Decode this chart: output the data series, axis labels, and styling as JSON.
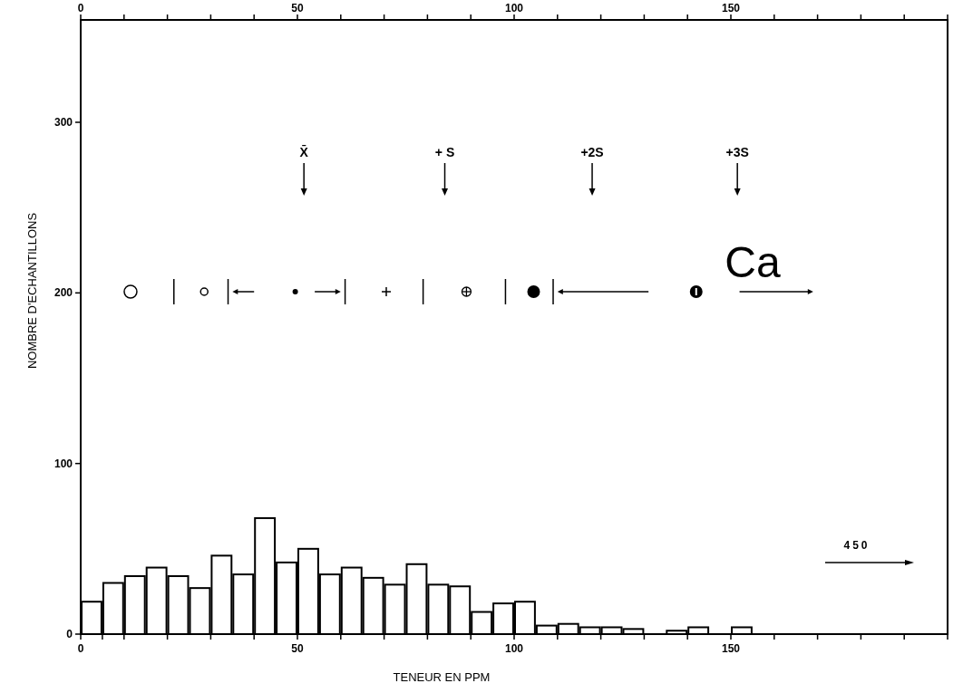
{
  "chart_data": {
    "type": "histogram",
    "xlabel": "TENEUR EN PPM",
    "ylabel": "NOMBRE D'ECHANTILLONS",
    "bins": [
      0,
      5,
      10,
      15,
      20,
      25,
      30,
      35,
      40,
      45,
      50,
      55,
      60,
      65,
      70,
      75,
      80,
      85,
      90,
      95,
      100,
      105,
      110,
      115,
      120,
      125,
      130,
      135,
      140,
      145,
      150,
      155
    ],
    "values": [
      19,
      30,
      34,
      39,
      34,
      27,
      46,
      35,
      68,
      42,
      50,
      35,
      39,
      33,
      29,
      41,
      29,
      28,
      13,
      18,
      19,
      5,
      6,
      4,
      4,
      3,
      0,
      2,
      4,
      0,
      4
    ],
    "color": "#ffffff",
    "xlim": [
      0,
      200
    ],
    "xticks": [
      0,
      {
        "value": 5,
        "label": null
      },
      {
        "value": 10,
        "label": null
      },
      {
        "value": 20,
        "label": null
      },
      {
        "value": 30,
        "label": null
      },
      {
        "value": 40,
        "label": null
      },
      50,
      {
        "value": 60,
        "label": null
      },
      {
        "value": 70,
        "label": null
      },
      {
        "value": 80,
        "label": null
      },
      {
        "value": 90,
        "label": null
      },
      100,
      {
        "value": 110,
        "label": null
      },
      {
        "value": 120,
        "label": null
      },
      {
        "value": 130,
        "label": null
      },
      {
        "value": 140,
        "label": null
      },
      150,
      {
        "value": 160,
        "label": null
      },
      {
        "value": 170,
        "label": null
      },
      {
        "value": 180,
        "label": null
      },
      {
        "value": 190,
        "label": null
      },
      {
        "value": 200,
        "label": null
      }
    ],
    "x2lim": [
      0,
      200
    ],
    "x2ticks": [
      0,
      {
        "value": 10,
        "label": null
      },
      {
        "value": 20,
        "label": null
      },
      {
        "value": 30,
        "label": null
      },
      {
        "value": 40,
        "label": null
      },
      50,
      {
        "value": 60,
        "label": null
      },
      {
        "value": 70,
        "label": null
      },
      {
        "value": 80,
        "label": null
      },
      {
        "value": 90,
        "label": null
      },
      100,
      {
        "value": 110,
        "label": null
      },
      {
        "value": 120,
        "label": null
      },
      {
        "value": 130,
        "label": null
      },
      {
        "value": 140,
        "label": null
      },
      150,
      {
        "value": 160,
        "label": null
      },
      {
        "value": 170,
        "label": null
      },
      {
        "value": 180,
        "label": null
      },
      {
        "value": 190,
        "label": null
      },
      {
        "value": 200,
        "label": null
      }
    ],
    "ylim": [
      0,
      360
    ],
    "yticks": [
      0,
      100,
      200,
      300
    ],
    "grid": false,
    "annotations": [
      "X̄",
      "+ S",
      "+2S",
      "+3S",
      "Ca",
      "450"
    ]
  }
}
